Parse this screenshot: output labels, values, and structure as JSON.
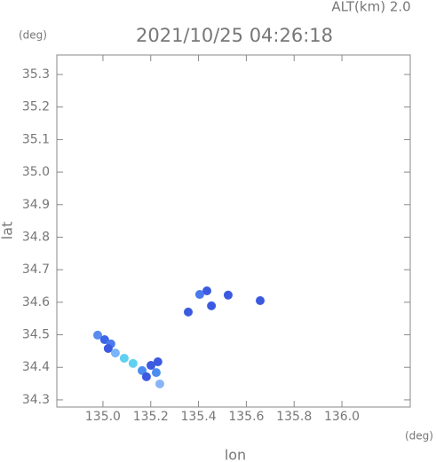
{
  "chart_data": {
    "type": "scatter",
    "title": "2021/10/25 04:26:18",
    "subtitle": "ALT(km) 2.0",
    "x_unit": "(deg)",
    "y_unit": "(deg)",
    "x_label": "lon",
    "y_label": "lat",
    "x": [
      134.978,
      135.007,
      135.033,
      135.022,
      135.052,
      135.089,
      135.126,
      135.164,
      135.201,
      135.23,
      135.182,
      135.223,
      135.238,
      135.435,
      135.405,
      135.357,
      135.454,
      135.524,
      135.658
    ],
    "y": [
      34.499,
      34.485,
      34.472,
      34.458,
      34.444,
      34.428,
      34.412,
      34.39,
      34.406,
      34.417,
      34.371,
      34.384,
      34.349,
      34.635,
      34.624,
      34.57,
      34.589,
      34.622,
      34.605
    ],
    "colors": [
      "#5a8cf0",
      "#3c64e6",
      "#4a78ee",
      "#3c5ae0",
      "#7ab4f8",
      "#60d0f0",
      "#60d0f0",
      "#4a8cf0",
      "#3c5ae0",
      "#3c5ae0",
      "#3c5ae0",
      "#4a8cf0",
      "#8ab4f8",
      "#3c5ae0",
      "#4a78ee",
      "#3c5ae0",
      "#3c5ae0",
      "#3c5ae0",
      "#3c5ae0"
    ],
    "xlim": [
      134.807,
      136.286
    ],
    "ylim": [
      34.278,
      35.36
    ],
    "xticks": [
      {
        "value": 135.0,
        "label": "135.0"
      },
      135.2,
      135.4,
      135.6,
      135.8,
      {
        "value": 136.0,
        "label": "136.0"
      }
    ],
    "yticks": [
      34.3,
      34.4,
      34.5,
      34.6,
      34.7,
      34.8,
      34.9,
      {
        "value": 35.0,
        "label": "35.0"
      },
      35.1,
      35.2,
      35.3
    ]
  }
}
